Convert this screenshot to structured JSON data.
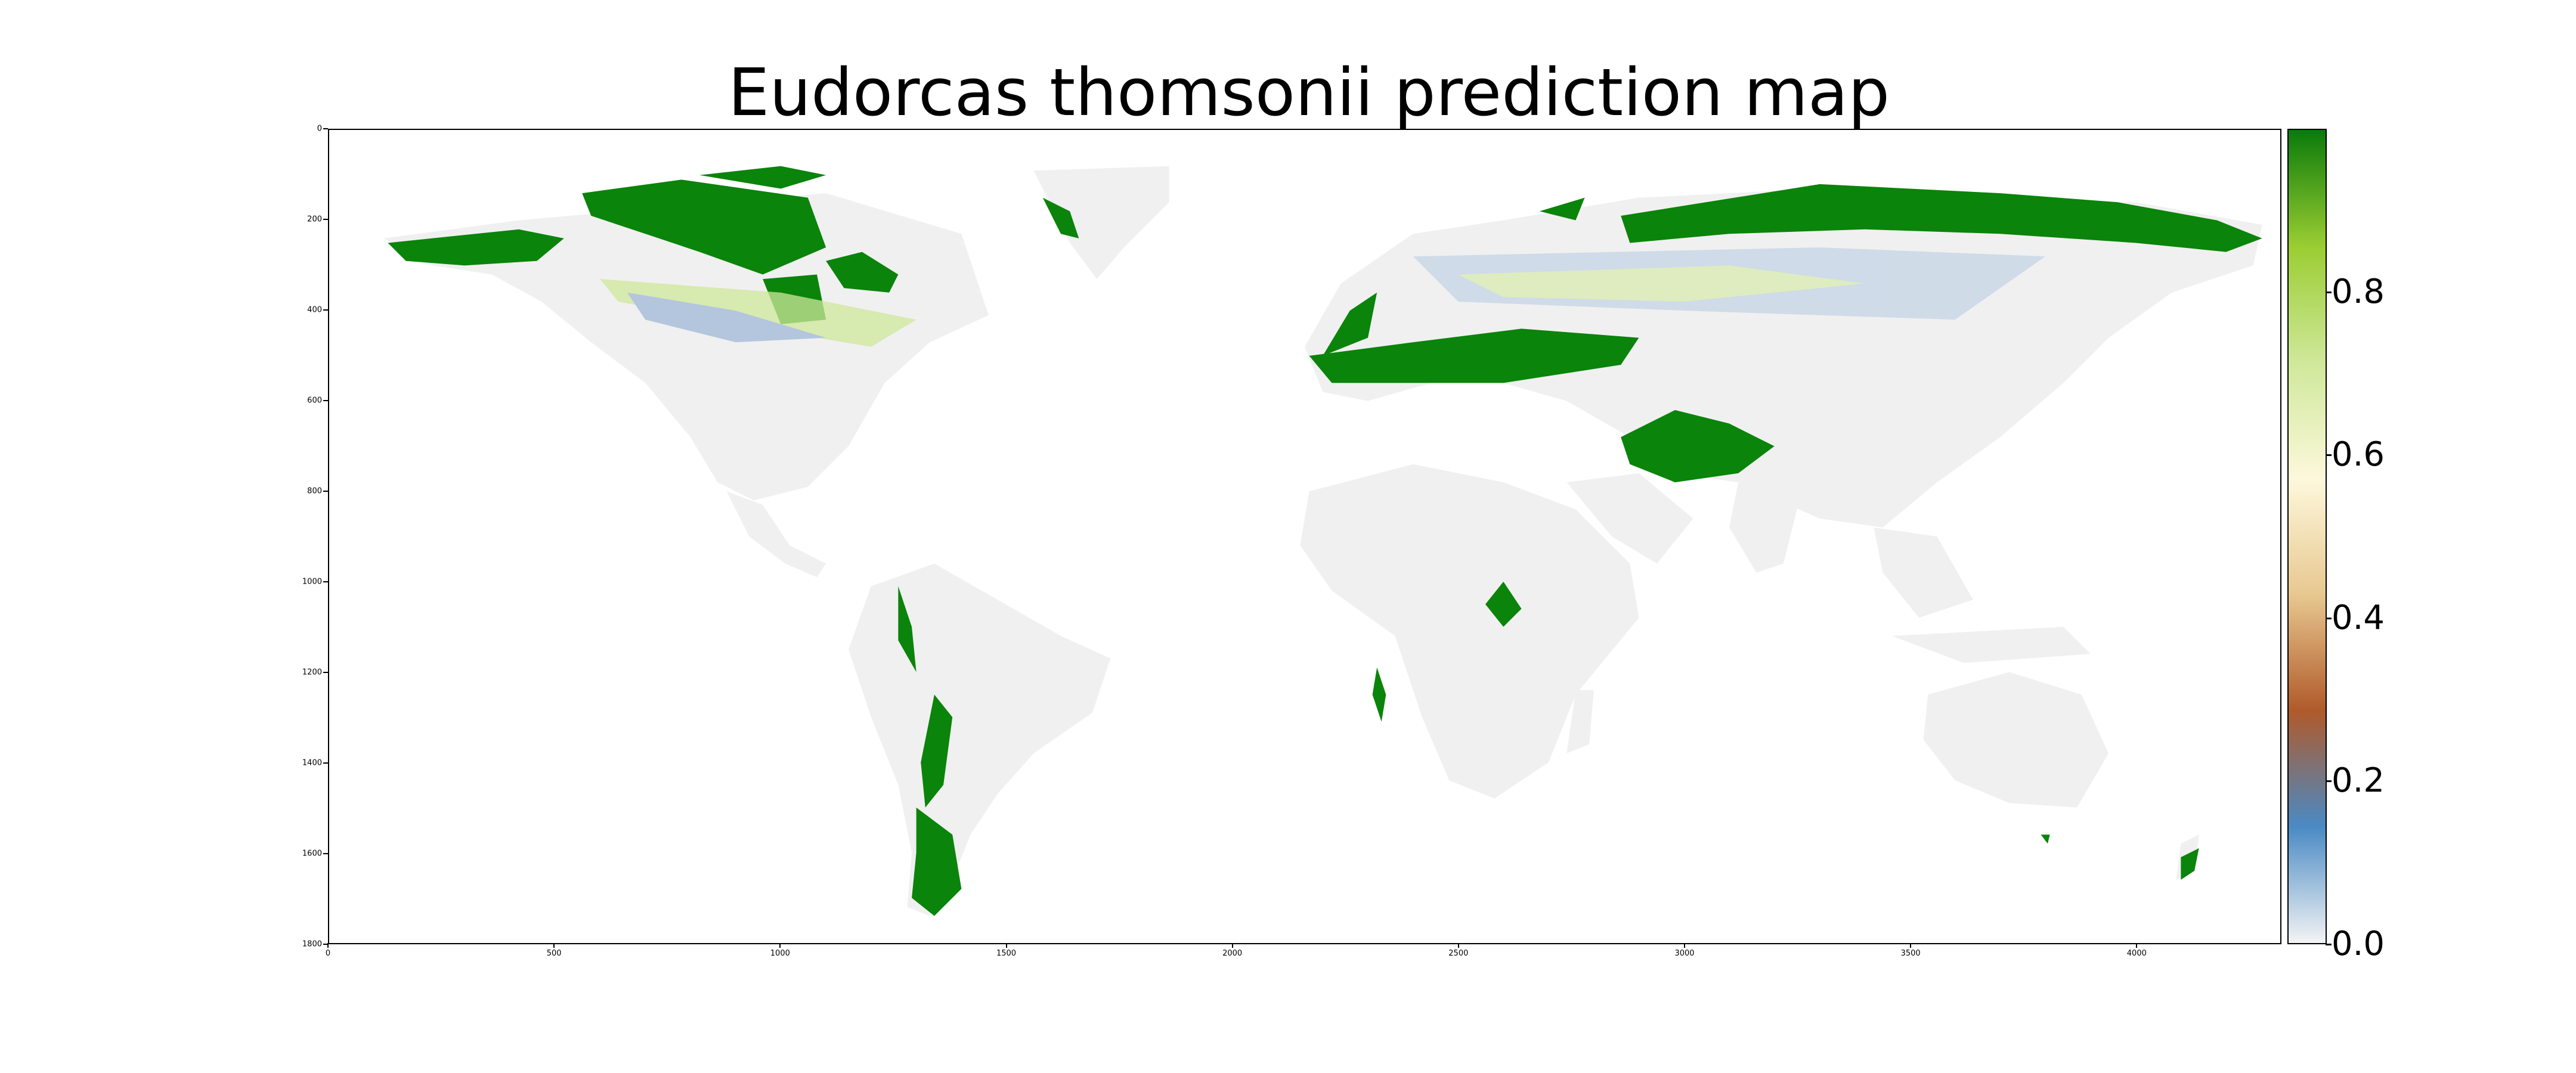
{
  "title": "Eudorcas thomsonii prediction map",
  "y_ticks": [
    "0",
    "200",
    "400",
    "600",
    "800",
    "1000",
    "1200",
    "1400",
    "1600",
    "1800"
  ],
  "x_ticks": [
    "0",
    "500",
    "1000",
    "1500",
    "2000",
    "2500",
    "3000",
    "3500",
    "4000"
  ],
  "colorbar": {
    "ticks": [
      "0.0",
      "0.2",
      "0.4",
      "0.6",
      "0.8"
    ],
    "tick_values": [
      0.0,
      0.2,
      0.4,
      0.6,
      0.8
    ],
    "range": [
      0.0,
      1.0
    ],
    "colors": [
      "#f4f4f4",
      "#4a8ac4",
      "#b05a2a",
      "#e8c890",
      "#fdf8dc",
      "#cfe89a",
      "#9acd32",
      "#0a7a0a"
    ]
  },
  "map": {
    "land_color": "#f0f0f0",
    "high_color": "#0a840a",
    "axis_range_x": [
      0,
      4320
    ],
    "axis_range_y": [
      0,
      1800
    ]
  }
}
